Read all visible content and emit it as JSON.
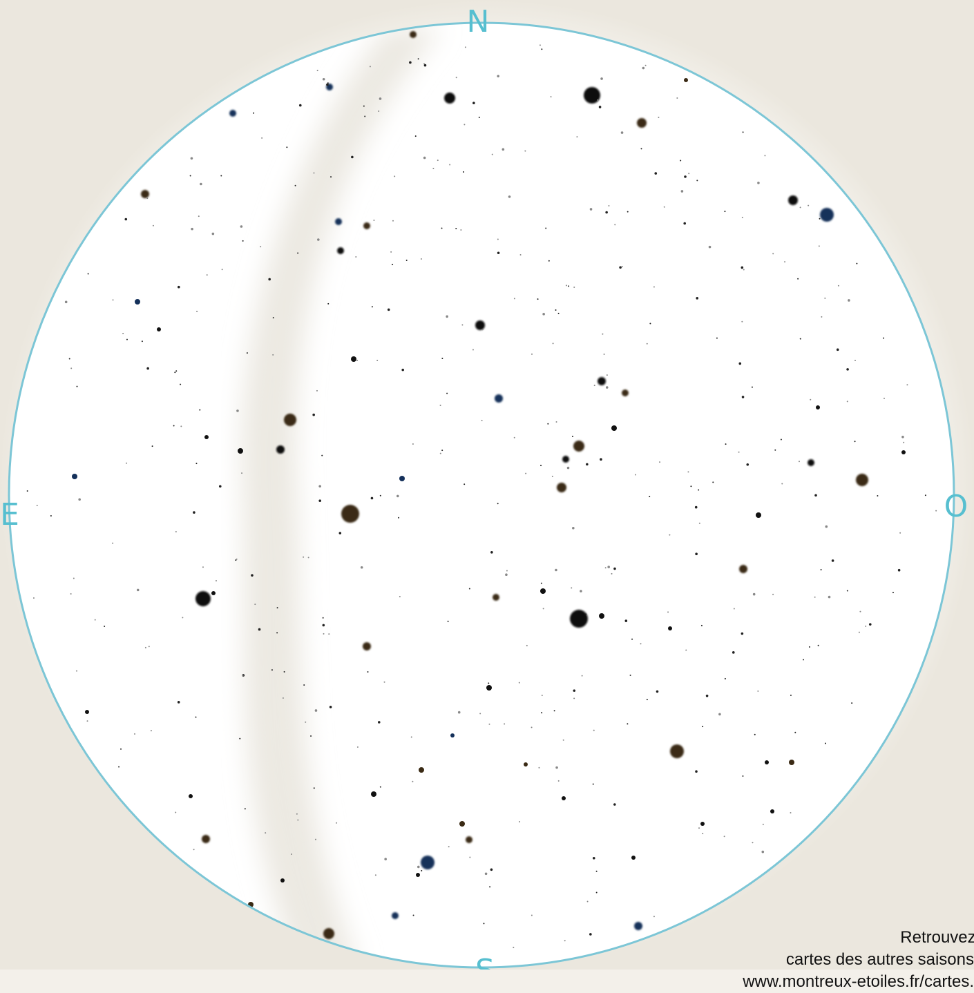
{
  "compass": {
    "north": "N",
    "east": "E",
    "west": "O",
    "south": "S"
  },
  "credit": {
    "line1": "Retrouvez les",
    "line2": "cartes des autres saisons sur",
    "line3": "www.montreux-etoiles.fr/cartes.htm"
  }
}
